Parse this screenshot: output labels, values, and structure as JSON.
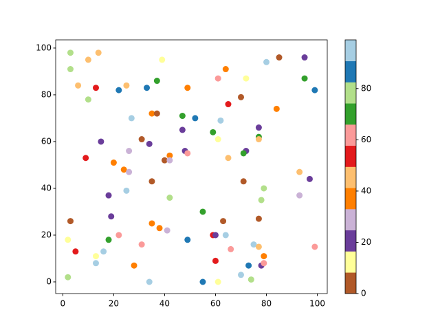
{
  "chart_data": {
    "type": "scatter",
    "x": [
      3,
      14,
      3,
      10,
      39,
      85,
      95,
      80,
      64,
      6,
      13,
      22,
      25,
      33,
      37,
      49,
      61,
      72,
      95,
      99,
      10,
      70,
      65,
      84,
      35,
      37,
      27,
      47,
      52,
      62,
      47,
      59,
      77,
      15,
      31,
      34,
      61,
      77,
      77,
      26,
      48,
      49,
      72,
      71,
      9,
      20,
      42,
      40,
      42,
      24,
      26,
      65,
      93,
      97,
      35,
      71,
      25,
      79,
      18,
      42,
      78,
      93,
      55,
      19,
      3,
      35,
      38,
      41,
      63,
      77,
      22,
      18,
      2,
      49,
      59,
      60,
      64,
      31,
      75,
      77,
      99,
      66,
      5,
      16,
      13,
      13,
      28,
      60,
      73,
      79,
      78,
      79,
      70,
      74,
      2,
      34,
      55,
      61
    ],
    "y": [
      98,
      98,
      91,
      95,
      95,
      96,
      96,
      94,
      91,
      84,
      83,
      82,
      84,
      83,
      86,
      83,
      87,
      87,
      87,
      82,
      78,
      79,
      76,
      74,
      72,
      72,
      70,
      71,
      70,
      69,
      65,
      64,
      66,
      60,
      61,
      59,
      61,
      62,
      61,
      56,
      56,
      55,
      56,
      55,
      53,
      51,
      54,
      52,
      52,
      48,
      47,
      53,
      47,
      44,
      43,
      43,
      39,
      40,
      37,
      36,
      35,
      37,
      30,
      28,
      26,
      25,
      23,
      22,
      26,
      27,
      20,
      18,
      18,
      18,
      20,
      20,
      20,
      16,
      16,
      15,
      15,
      14,
      13,
      13,
      11,
      8,
      7,
      9,
      7,
      11,
      7,
      8,
      3,
      1,
      2,
      0,
      0,
      0
    ],
    "c": [
      78,
      45,
      78,
      45,
      12,
      4,
      21,
      95,
      37,
      45,
      54,
      87,
      45,
      87,
      70,
      37,
      62,
      12,
      70,
      87,
      78,
      4,
      54,
      37,
      37,
      4,
      95,
      70,
      87,
      95,
      21,
      70,
      21,
      21,
      4,
      21,
      12,
      70,
      45,
      29,
      21,
      62,
      21,
      70,
      54,
      37,
      37,
      4,
      29,
      37,
      29,
      45,
      45,
      21,
      4,
      4,
      95,
      78,
      21,
      78,
      78,
      29,
      70,
      21,
      4,
      37,
      37,
      29,
      4,
      4,
      62,
      70,
      12,
      87,
      54,
      21,
      95,
      62,
      95,
      45,
      62,
      62,
      54,
      95,
      12,
      95,
      37,
      54,
      87,
      37,
      21,
      62,
      95,
      78,
      78,
      95,
      87,
      12
    ],
    "xlim": [
      -2.8,
      103.9
    ],
    "ylim": [
      -5,
      103.5
    ],
    "xticks": [
      0,
      20,
      40,
      60,
      80,
      100
    ],
    "yticks": [
      0,
      20,
      40,
      60,
      80,
      100
    ],
    "colormap": [
      "#b15928",
      "#ffff99",
      "#6a3d9a",
      "#cab2d6",
      "#ff7f00",
      "#fdbf6f",
      "#e31a1c",
      "#fb9a99",
      "#33a02c",
      "#b2df8a",
      "#1f78b4",
      "#a6cee3"
    ],
    "clim": [
      0,
      99
    ],
    "cticks": [
      0,
      20,
      40,
      60,
      80
    ]
  }
}
